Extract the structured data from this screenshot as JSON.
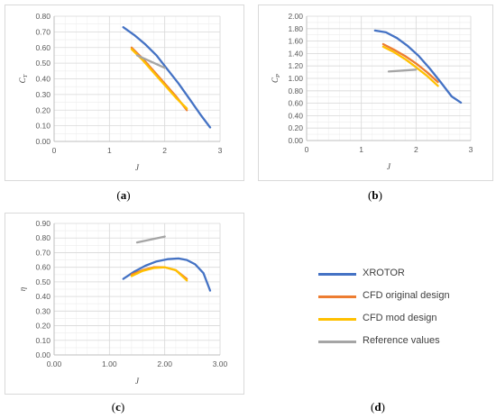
{
  "captions": {
    "a": "a",
    "b": "b",
    "c": "c",
    "d": "d"
  },
  "legend": [
    {
      "label": "XROTOR",
      "color": "#4472c4"
    },
    {
      "label": "CFD original design",
      "color": "#ed7d31"
    },
    {
      "label": "CFD mod design",
      "color": "#ffc000"
    },
    {
      "label": "Reference values",
      "color": "#a5a5a5"
    }
  ],
  "chart_data": [
    {
      "type": "line",
      "ylabel_main": "C",
      "ylabel_sub": "T",
      "xlabel": "J",
      "xlim": [
        0,
        3
      ],
      "ylim": [
        0,
        0.8
      ],
      "xticks": [
        "0",
        "1",
        "2",
        "3"
      ],
      "yticks": [
        "0.00",
        "0.10",
        "0.20",
        "0.30",
        "0.40",
        "0.50",
        "0.60",
        "0.70",
        "0.80"
      ],
      "grid": true,
      "series": [
        {
          "name": "XROTOR",
          "color": "#4472c4",
          "x": [
            1.25,
            1.45,
            1.65,
            1.85,
            2.05,
            2.25,
            2.45,
            2.65,
            2.82
          ],
          "y": [
            0.73,
            0.68,
            0.62,
            0.55,
            0.46,
            0.37,
            0.27,
            0.17,
            0.09
          ]
        },
        {
          "name": "CFD original design",
          "color": "#ed7d31",
          "x": [
            1.4,
            1.6,
            1.8,
            2.0,
            2.2,
            2.4
          ],
          "y": [
            0.6,
            0.53,
            0.45,
            0.37,
            0.29,
            0.2
          ]
        },
        {
          "name": "CFD mod design",
          "color": "#ffc000",
          "x": [
            1.4,
            1.6,
            1.8,
            2.0,
            2.2,
            2.4
          ],
          "y": [
            0.59,
            0.52,
            0.44,
            0.36,
            0.28,
            0.21
          ]
        },
        {
          "name": "Reference values",
          "color": "#a5a5a5",
          "x": [
            1.5,
            2.0
          ],
          "y": [
            0.55,
            0.47
          ]
        }
      ]
    },
    {
      "type": "line",
      "ylabel_main": "C",
      "ylabel_sub": "P",
      "xlabel": "J",
      "xlim": [
        0,
        3
      ],
      "ylim": [
        0,
        2.0
      ],
      "xticks": [
        "0",
        "1",
        "2",
        "3"
      ],
      "yticks": [
        "0.00",
        "0.20",
        "0.40",
        "0.60",
        "0.80",
        "1.00",
        "1.20",
        "1.40",
        "1.60",
        "1.80",
        "2.00"
      ],
      "grid": true,
      "series": [
        {
          "name": "XROTOR",
          "color": "#4472c4",
          "x": [
            1.25,
            1.45,
            1.65,
            1.85,
            2.05,
            2.25,
            2.45,
            2.65,
            2.82
          ],
          "y": [
            1.77,
            1.74,
            1.65,
            1.52,
            1.36,
            1.16,
            0.94,
            0.71,
            0.61
          ]
        },
        {
          "name": "CFD original design",
          "color": "#ed7d31",
          "x": [
            1.4,
            1.6,
            1.8,
            2.0,
            2.2,
            2.4
          ],
          "y": [
            1.55,
            1.46,
            1.36,
            1.24,
            1.1,
            0.94
          ]
        },
        {
          "name": "CFD mod design",
          "color": "#ffc000",
          "x": [
            1.4,
            1.6,
            1.8,
            2.0,
            2.2,
            2.4
          ],
          "y": [
            1.51,
            1.42,
            1.31,
            1.18,
            1.04,
            0.88
          ]
        },
        {
          "name": "Reference values",
          "color": "#a5a5a5",
          "x": [
            1.5,
            2.0
          ],
          "y": [
            1.11,
            1.14
          ]
        }
      ]
    },
    {
      "type": "line",
      "ylabel_main": "η",
      "ylabel_sub": "",
      "xlabel": "J",
      "xlim": [
        0,
        3
      ],
      "ylim": [
        0,
        0.9
      ],
      "xticks": [
        "0.00",
        "1.00",
        "2.00",
        "3.00"
      ],
      "yticks": [
        "0.00",
        "0.10",
        "0.20",
        "0.30",
        "0.40",
        "0.50",
        "0.60",
        "0.70",
        "0.80",
        "0.90"
      ],
      "grid": true,
      "series": [
        {
          "name": "XROTOR",
          "color": "#4472c4",
          "x": [
            1.25,
            1.45,
            1.65,
            1.85,
            2.05,
            2.25,
            2.4,
            2.55,
            2.7,
            2.82
          ],
          "y": [
            0.52,
            0.57,
            0.61,
            0.64,
            0.655,
            0.66,
            0.65,
            0.62,
            0.56,
            0.44
          ]
        },
        {
          "name": "CFD original design",
          "color": "#ed7d31",
          "x": [
            1.4,
            1.6,
            1.8,
            2.0,
            2.2,
            2.4
          ],
          "y": [
            0.55,
            0.58,
            0.6,
            0.6,
            0.58,
            0.52
          ]
        },
        {
          "name": "CFD mod design",
          "color": "#ffc000",
          "x": [
            1.4,
            1.6,
            1.8,
            2.0,
            2.2,
            2.4
          ],
          "y": [
            0.54,
            0.575,
            0.595,
            0.6,
            0.58,
            0.51
          ]
        },
        {
          "name": "Reference values",
          "color": "#a5a5a5",
          "x": [
            1.5,
            2.0
          ],
          "y": [
            0.77,
            0.81
          ]
        }
      ]
    }
  ]
}
